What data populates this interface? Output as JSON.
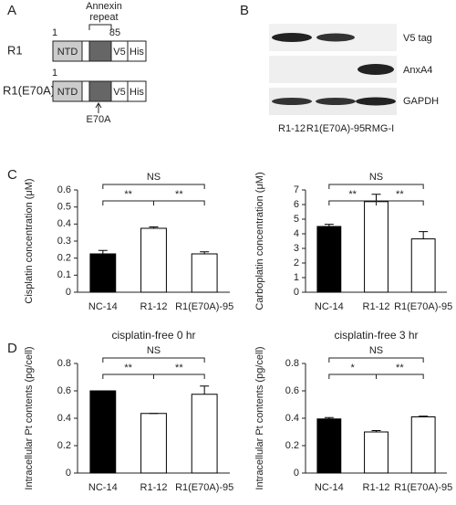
{
  "panel_labels": [
    "A",
    "B",
    "C",
    "D"
  ],
  "diagram": {
    "annexin_label": [
      "Annexin",
      "repeat"
    ],
    "rows": [
      {
        "name": "R1",
        "start": "1",
        "end": "85",
        "domains": [
          "NTD",
          "V5",
          "His"
        ]
      },
      {
        "name": "R1(E70A)",
        "start": "1",
        "domains": [
          "NTD",
          "V5",
          "His"
        ],
        "mutation": "E70A"
      }
    ]
  },
  "blot": {
    "rows": [
      "V5 tag",
      "AnxA4",
      "GAPDH"
    ],
    "lanes": [
      "R1-12",
      "R1(E70A)-95",
      "RMG-I"
    ]
  },
  "chart_data": [
    {
      "type": "bar",
      "ylabel": "Cisplatin concentration (μM)",
      "categories": [
        "NC-14",
        "R1-12",
        "R1(E70A)-95"
      ],
      "colors": [
        "#000000",
        "#ffffff",
        "#ffffff"
      ],
      "values": [
        0.225,
        0.375,
        0.225
      ],
      "errors": [
        0.02,
        0.008,
        0.012
      ],
      "ylim": [
        0,
        0.6
      ],
      "yticks": [
        0,
        0.1,
        0.2,
        0.3,
        0.4,
        0.5,
        0.6
      ],
      "annotations": [
        "NS",
        "**",
        "**"
      ]
    },
    {
      "type": "bar",
      "ylabel": "Carboplatin concentration (μM)",
      "categories": [
        "NC-14",
        "R1-12",
        "R1(E70A)-95"
      ],
      "colors": [
        "#000000",
        "#ffffff",
        "#ffffff"
      ],
      "values": [
        4.5,
        6.2,
        3.65
      ],
      "errors": [
        0.15,
        0.5,
        0.5
      ],
      "ylim": [
        0,
        7
      ],
      "yticks": [
        0,
        1,
        2,
        3,
        4,
        5,
        6,
        7
      ],
      "annotations": [
        "NS",
        "**",
        "**"
      ]
    },
    {
      "type": "bar",
      "title": "cisplatin-free 0 hr",
      "ylabel": "Intracellular Pt contents (pg/cell)",
      "categories": [
        "NC-14",
        "R1-12",
        "R1(E70A)-95"
      ],
      "colors": [
        "#000000",
        "#ffffff",
        "#ffffff"
      ],
      "values": [
        0.6,
        0.435,
        0.575
      ],
      "errors": [
        0,
        0,
        0.06
      ],
      "ylim": [
        0,
        0.8
      ],
      "yticks": [
        0,
        0.2,
        0.4,
        0.6,
        0.8
      ],
      "annotations": [
        "NS",
        "**",
        "**"
      ]
    },
    {
      "type": "bar",
      "title": "cisplatin-free 3 hr",
      "ylabel": "Intracellular Pt contents (pg/cell)",
      "categories": [
        "NC-14",
        "R1-12",
        "R1(E70A)-95"
      ],
      "colors": [
        "#000000",
        "#ffffff",
        "#ffffff"
      ],
      "values": [
        0.395,
        0.3,
        0.41
      ],
      "errors": [
        0.01,
        0.01,
        0.005
      ],
      "ylim": [
        0,
        0.8
      ],
      "yticks": [
        0,
        0.2,
        0.4,
        0.6,
        0.8
      ],
      "annotations": [
        "NS",
        "*",
        "**"
      ]
    }
  ]
}
